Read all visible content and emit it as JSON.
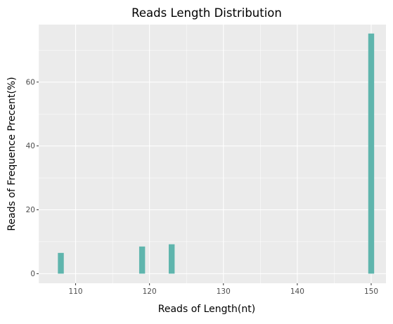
{
  "chart_data": {
    "type": "bar",
    "title": "Reads Length Distribution",
    "xlabel": "Reads of Length(nt)",
    "ylabel": "Reads of Frequence Precent(%)",
    "x": [
      108,
      119,
      123,
      150
    ],
    "values": [
      6.5,
      8.5,
      9.2,
      75.2
    ],
    "xlim": [
      105,
      152
    ],
    "ylim": [
      -3,
      78
    ],
    "x_ticks": [
      110,
      120,
      130,
      140,
      150
    ],
    "y_ticks": [
      0,
      20,
      40,
      60
    ],
    "x_tick_labels": [
      "110",
      "120",
      "130",
      "140",
      "150"
    ],
    "y_tick_labels": [
      "0",
      "20",
      "40",
      "60"
    ],
    "grid": true,
    "legend": "none"
  },
  "colors": {
    "panel_background": "#ebebeb",
    "grid_major": "#ffffff",
    "bar_fill": "#5fb5ad"
  }
}
